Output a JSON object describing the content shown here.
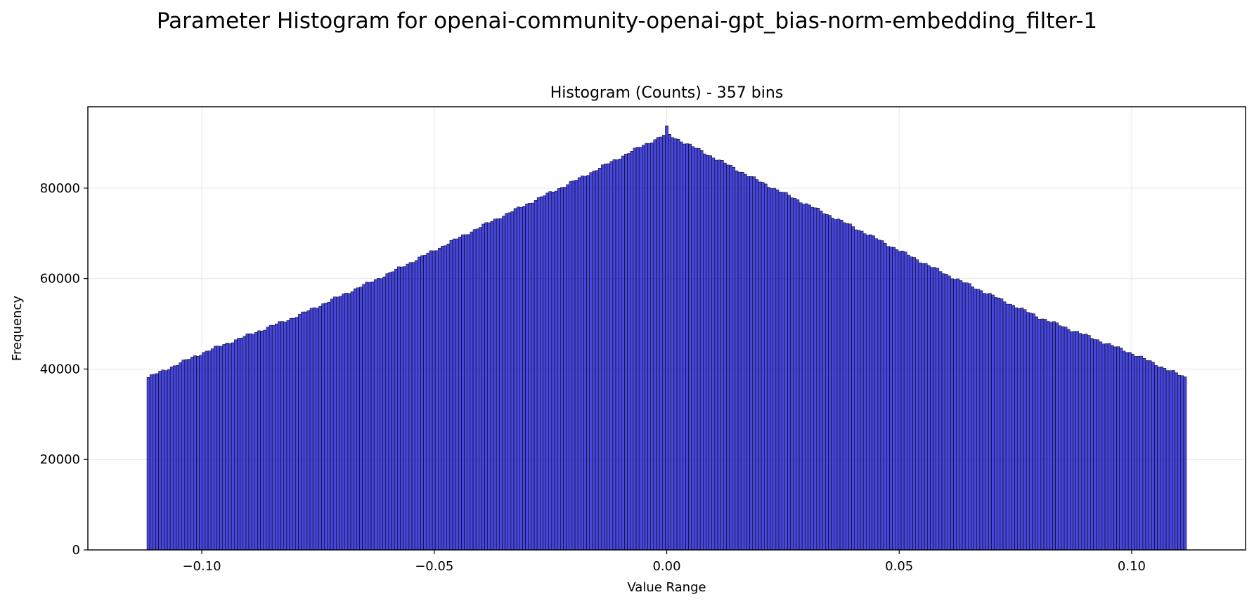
{
  "suptitle": "Parameter Histogram for openai-community-openai-gpt_bias-norm-embedding_filter-1",
  "chart_data": {
    "type": "bar",
    "title": "Histogram (Counts) - 357 bins",
    "xlabel": "Value Range",
    "ylabel": "Frequency",
    "bins": 357,
    "xlim": [
      -0.1245,
      0.1245
    ],
    "ylim": [
      0,
      98000
    ],
    "x_range": [
      -0.1118,
      0.1118
    ],
    "xticks": [
      -0.1,
      -0.05,
      0.0,
      0.05,
      0.1
    ],
    "xtick_labels": [
      "−0.10",
      "−0.05",
      "0.00",
      "0.05",
      "0.10"
    ],
    "yticks": [
      0,
      20000,
      40000,
      60000,
      80000
    ],
    "ytick_labels": [
      "0",
      "20000",
      "40000",
      "60000",
      "80000"
    ],
    "profile_x": [
      -0.1118,
      -0.1,
      -0.08,
      -0.06,
      -0.04,
      -0.02,
      -0.005,
      0.0,
      0.005,
      0.02,
      0.04,
      0.06,
      0.08,
      0.1,
      0.1118
    ],
    "profile_counts": [
      38000,
      43500,
      51500,
      61000,
      71500,
      81500,
      89500,
      92000,
      89500,
      81500,
      71500,
      61000,
      51500,
      43500,
      38000
    ],
    "spike": {
      "x": 0.0003,
      "count": 93800
    },
    "grid": true,
    "bar_color": "#0000cc",
    "bar_edge_color": "#000000",
    "grid_color": "#e6e6e6"
  }
}
